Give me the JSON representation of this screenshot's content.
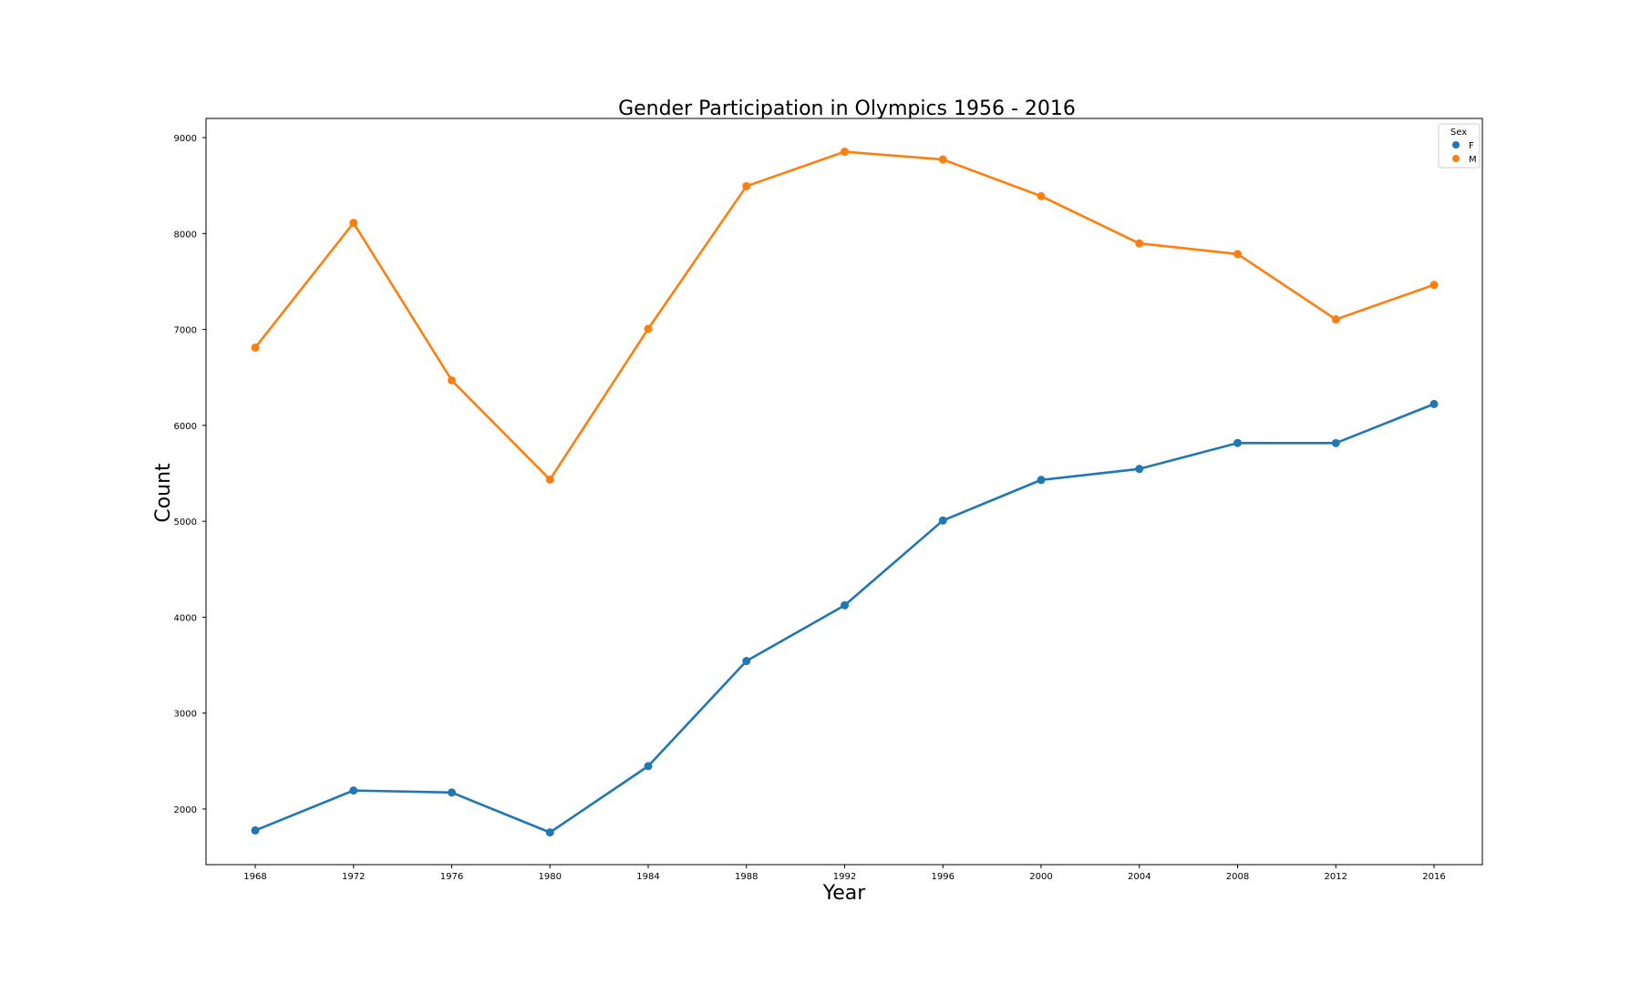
{
  "chart_data": {
    "type": "line",
    "title": "Gender Participation in Olympics 1956 - 2016",
    "xlabel": "Year",
    "ylabel": "Count",
    "categories": [
      "1968",
      "1972",
      "1976",
      "1980",
      "1984",
      "1988",
      "1992",
      "1996",
      "2000",
      "2004",
      "2008",
      "2012",
      "2016"
    ],
    "yticks": [
      2000,
      3000,
      4000,
      5000,
      6000,
      7000,
      8000,
      9000
    ],
    "ylim": [
      1420,
      9200
    ],
    "grid": false,
    "legend": {
      "title": "Sex",
      "placement": "top-right"
    },
    "series": [
      {
        "name": "F",
        "color": "#1f77b4",
        "values": [
          1777,
          2193,
          2172,
          1756,
          2447,
          3543,
          4124,
          5008,
          5431,
          5546,
          5816,
          5815,
          6223
        ]
      },
      {
        "name": "M",
        "color": "#ff7f0e",
        "values": [
          6811,
          8111,
          6469,
          5435,
          7007,
          8494,
          8853,
          8772,
          8390,
          7897,
          7786,
          7105,
          7465
        ]
      }
    ]
  }
}
